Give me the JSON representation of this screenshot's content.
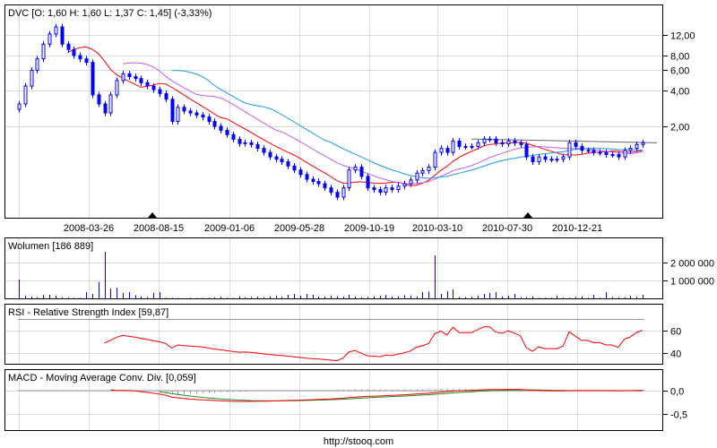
{
  "chart_data": [
    {
      "type": "candlestick",
      "title": "DVC [O: 1,60  H: 1,60  L: 1,37  C: 1,45] (-3,33%)",
      "y_scale": "log",
      "ylim": [
        0.33,
        21
      ],
      "y_ticks": [
        {
          "v": 12,
          "label": "12,00"
        },
        {
          "v": 8,
          "label": "8,00"
        },
        {
          "v": 6,
          "label": "6,00"
        },
        {
          "v": 4,
          "label": "4,00"
        },
        {
          "v": 2,
          "label": "2,00"
        }
      ],
      "x_tick_labels": [
        "2008-03-26",
        "2008-08-15",
        "2009-01-06",
        "2009-05-28",
        "2009-10-19",
        "2010-03-10",
        "2010-07-30",
        "2010-12-21"
      ],
      "grid": true,
      "candle_color": "#0000ff",
      "moving_averages": [
        {
          "period": 9,
          "color": "#ff0000"
        },
        {
          "period": 18,
          "color": "#c060ff"
        },
        {
          "period": 26,
          "color": "#1a9bf0"
        }
      ],
      "resistance_line": {
        "from": 1.56,
        "to": 1.45,
        "color": "#666666"
      },
      "markers": [
        "triangle-up-icon",
        "triangle-up-icon"
      ],
      "close": [
        3.1,
        4.4,
        6.0,
        7.5,
        10,
        12.2,
        14,
        10,
        9,
        8,
        7.5,
        7,
        3.7,
        3.1,
        2.6,
        3.7,
        4.9,
        5.6,
        5.3,
        5.1,
        4.7,
        4.4,
        4.1,
        3.8,
        3.4,
        2.2,
        2.9,
        2.7,
        2.6,
        2.5,
        2.4,
        2.2,
        2.0,
        1.85,
        1.7,
        1.55,
        1.43,
        1.45,
        1.4,
        1.3,
        1.2,
        1.1,
        1.05,
        1.0,
        0.92,
        0.85,
        0.78,
        0.71,
        0.68,
        0.65,
        0.6,
        0.55,
        0.5,
        0.6,
        0.85,
        0.9,
        0.75,
        0.6,
        0.58,
        0.55,
        0.6,
        0.58,
        0.62,
        0.65,
        0.7,
        0.8,
        0.84,
        0.9,
        1.2,
        1.3,
        1.2,
        1.5,
        1.35,
        1.35,
        1.35,
        1.45,
        1.56,
        1.56,
        1.45,
        1.42,
        1.5,
        1.45,
        1.4,
        1.1,
        1.0,
        1.1,
        1.05,
        1.05,
        1.05,
        1.1,
        1.45,
        1.35,
        1.25,
        1.25,
        1.2,
        1.2,
        1.15,
        1.15,
        1.1,
        1.25,
        1.3,
        1.4,
        1.45
      ]
    },
    {
      "type": "bar",
      "title": "Wolumen [186 889]",
      "ylim": [
        0,
        3400000
      ],
      "y_ticks": [
        {
          "v": 2000000,
          "label": "2 000 000"
        },
        {
          "v": 1000000,
          "label": "1 000 000"
        }
      ],
      "color": "#0000ff",
      "values": [
        1050000,
        150000,
        100000,
        60000,
        180000,
        200000,
        150000,
        60000,
        50000,
        40000,
        30000,
        350000,
        250000,
        900000,
        2600000,
        550000,
        600000,
        300000,
        350000,
        180000,
        120000,
        80000,
        300000,
        350000,
        40000,
        30000,
        20000,
        20000,
        30000,
        25000,
        30000,
        40000,
        60000,
        80000,
        40000,
        30000,
        120000,
        60000,
        80000,
        100000,
        60000,
        120000,
        150000,
        80000,
        200000,
        250000,
        150000,
        250000,
        200000,
        100000,
        100000,
        150000,
        120000,
        100000,
        200000,
        100000,
        60000,
        80000,
        120000,
        150000,
        200000,
        100000,
        120000,
        180000,
        150000,
        120000,
        350000,
        380000,
        2400000,
        250000,
        400000,
        500000,
        80000,
        70000,
        80000,
        150000,
        250000,
        300000,
        350000,
        100000,
        150000,
        250000,
        60000,
        80000,
        120000,
        40000,
        30000,
        30000,
        150000,
        40000,
        30000,
        80000,
        120000,
        40000,
        200000,
        40000,
        350000,
        80000,
        60000,
        60000,
        150000,
        80000,
        200000
      ]
    },
    {
      "type": "line",
      "title": "RSI - Relative Strength Index [59,87]",
      "ylim": [
        30,
        70
      ],
      "y_ticks": [
        {
          "v": 60,
          "label": "60"
        },
        {
          "v": 40,
          "label": "40"
        }
      ],
      "period": 14,
      "color": "#ff0000"
    },
    {
      "type": "line",
      "title": "MACD - Moving Average Conv. Div. [0,059]",
      "ylim": [
        -0.9,
        0.45
      ],
      "y_ticks": [
        {
          "v": 0,
          "label": "0,0"
        },
        {
          "v": -0.5,
          "label": "-0,5"
        }
      ],
      "series_colors": {
        "macd": "#ff0000",
        "signal": "#228b22",
        "histogram": "#999999"
      }
    }
  ],
  "footer": "http://stooq.com"
}
